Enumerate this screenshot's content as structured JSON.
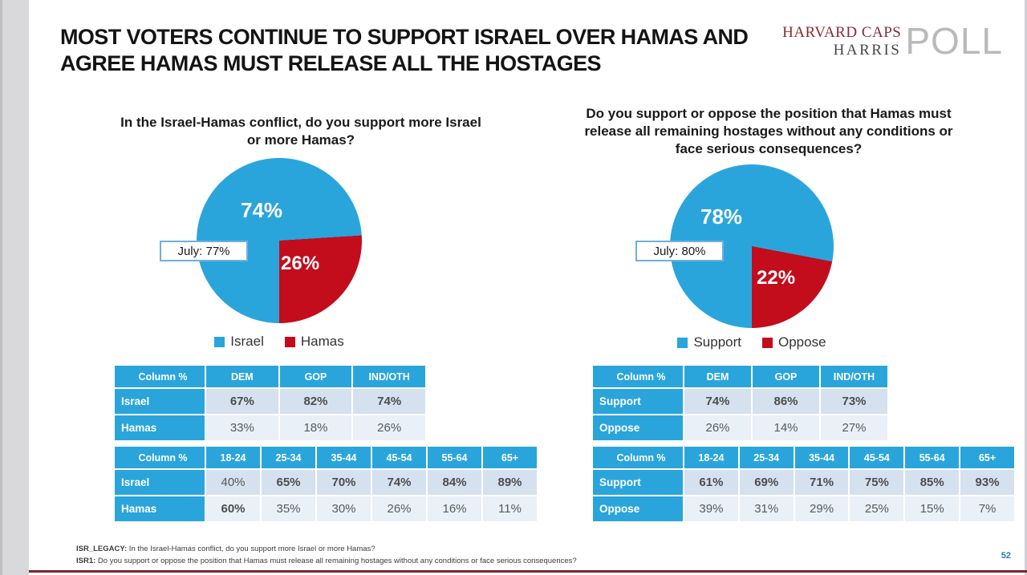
{
  "page": {
    "page_number": "52",
    "accent_blue": "#2aa5dc",
    "accent_red": "#c30d1c",
    "footer_line_color": "#7b262b"
  },
  "header": {
    "title_line1": "MOST VOTERS CONTINUE TO SUPPORT ISRAEL OVER HAMAS AND",
    "title_line2": "AGREE HAMAS MUST RELEASE ALL THE HOSTAGES"
  },
  "logo": {
    "line1": "HARVARD CAPS",
    "line2": "HARRIS",
    "word": "POLL"
  },
  "left_chart": {
    "title": "In the Israel-Hamas conflict, do you support more Israel or more Hamas?",
    "value_major": "74%",
    "value_minor": "26%",
    "callout": "July: 77%",
    "legend_major": "Israel",
    "legend_minor": "Hamas"
  },
  "right_chart": {
    "title": "Do you support or oppose the position that Hamas must release all remaining hostages without any conditions or face serious consequences?",
    "value_major": "78%",
    "value_minor": "22%",
    "callout": "July: 80%",
    "legend_major": "Support",
    "legend_minor": "Oppose"
  },
  "tables": [
    {
      "columns": [
        "Column %",
        "DEM",
        "GOP",
        "IND/OTH"
      ],
      "rows": [
        {
          "label": "Israel",
          "values": [
            "67%",
            "82%",
            "74%"
          ],
          "bold": [
            1,
            1,
            1
          ]
        },
        {
          "label": "Hamas",
          "values": [
            "33%",
            "18%",
            "26%"
          ],
          "bold": [
            0,
            0,
            0
          ]
        }
      ]
    },
    {
      "columns": [
        "Column %",
        "18-24",
        "25-34",
        "35-44",
        "45-54",
        "55-64",
        "65+"
      ],
      "rows": [
        {
          "label": "Israel",
          "values": [
            "40%",
            "65%",
            "70%",
            "74%",
            "84%",
            "89%"
          ],
          "bold": [
            0,
            1,
            1,
            1,
            1,
            1
          ]
        },
        {
          "label": "Hamas",
          "values": [
            "60%",
            "35%",
            "30%",
            "26%",
            "16%",
            "11%"
          ],
          "bold": [
            1,
            0,
            0,
            0,
            0,
            0
          ]
        }
      ]
    },
    {
      "columns": [
        "Column %",
        "DEM",
        "GOP",
        "IND/OTH"
      ],
      "rows": [
        {
          "label": "Support",
          "values": [
            "74%",
            "86%",
            "73%"
          ],
          "bold": [
            1,
            1,
            1
          ]
        },
        {
          "label": "Oppose",
          "values": [
            "26%",
            "14%",
            "27%"
          ],
          "bold": [
            0,
            0,
            0
          ]
        }
      ]
    },
    {
      "columns": [
        "Column %",
        "18-24",
        "25-34",
        "35-44",
        "45-54",
        "55-64",
        "65+"
      ],
      "rows": [
        {
          "label": "Support",
          "values": [
            "61%",
            "69%",
            "71%",
            "75%",
            "85%",
            "93%"
          ],
          "bold": [
            1,
            1,
            1,
            1,
            1,
            1
          ]
        },
        {
          "label": "Oppose",
          "values": [
            "39%",
            "31%",
            "29%",
            "25%",
            "15%",
            "7%"
          ],
          "bold": [
            0,
            0,
            0,
            0,
            0,
            0
          ]
        }
      ]
    }
  ],
  "footnotes": [
    {
      "prefix": "ISR_LEGACY:",
      "text": " In the Israel-Hamas conflict, do you support more Israel or more Hamas?"
    },
    {
      "prefix": "ISR1:",
      "text": " Do you support or oppose the position that Hamas must release all remaining hostages without any conditions or face serious consequences?"
    }
  ],
  "chart_data": [
    {
      "type": "pie",
      "title": "In the Israel-Hamas conflict, do you support more Israel or more Hamas?",
      "labels": [
        "Israel",
        "Hamas"
      ],
      "values": [
        74,
        26
      ],
      "colors": [
        "#2aa5dc",
        "#c30d1c"
      ],
      "annotation": "July: 77%",
      "legend_position": "bottom",
      "start_angle_deg": 180
    },
    {
      "type": "pie",
      "title": "Do you support or oppose the position that Hamas must release all remaining hostages without any conditions or face serious consequences?",
      "labels": [
        "Support",
        "Oppose"
      ],
      "values": [
        78,
        22
      ],
      "colors": [
        "#2aa5dc",
        "#c30d1c"
      ],
      "annotation": "July: 80%",
      "legend_position": "bottom",
      "start_angle_deg": 180
    },
    {
      "type": "table",
      "columns": [
        "Column %",
        "DEM",
        "GOP",
        "IND/OTH"
      ],
      "rows": [
        [
          "Israel",
          "67%",
          "82%",
          "74%"
        ],
        [
          "Hamas",
          "33%",
          "18%",
          "26%"
        ]
      ]
    },
    {
      "type": "table",
      "columns": [
        "Column %",
        "18-24",
        "25-34",
        "35-44",
        "45-54",
        "55-64",
        "65+"
      ],
      "rows": [
        [
          "Israel",
          "40%",
          "65%",
          "70%",
          "74%",
          "84%",
          "89%"
        ],
        [
          "Hamas",
          "60%",
          "35%",
          "30%",
          "26%",
          "16%",
          "11%"
        ]
      ]
    },
    {
      "type": "table",
      "columns": [
        "Column %",
        "DEM",
        "GOP",
        "IND/OTH"
      ],
      "rows": [
        [
          "Support",
          "74%",
          "86%",
          "73%"
        ],
        [
          "Oppose",
          "26%",
          "14%",
          "27%"
        ]
      ]
    },
    {
      "type": "table",
      "columns": [
        "Column %",
        "18-24",
        "25-34",
        "35-44",
        "45-54",
        "55-64",
        "65+"
      ],
      "rows": [
        [
          "Support",
          "61%",
          "69%",
          "71%",
          "75%",
          "85%",
          "93%"
        ],
        [
          "Oppose",
          "39%",
          "31%",
          "29%",
          "25%",
          "15%",
          "7%"
        ]
      ]
    }
  ]
}
